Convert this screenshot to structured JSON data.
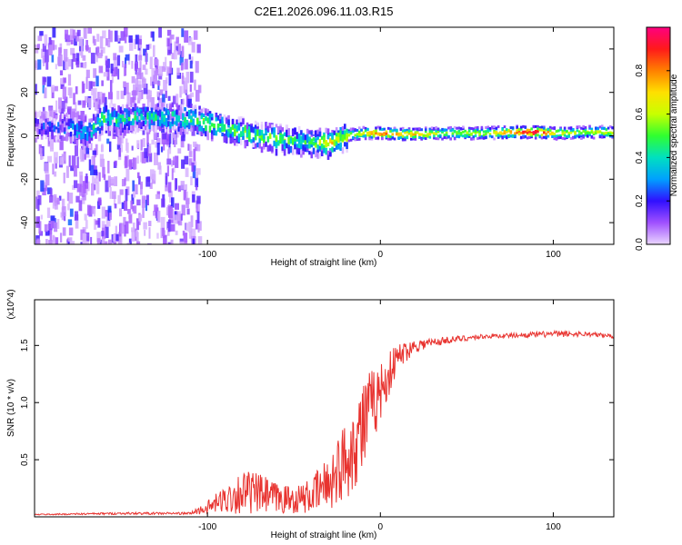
{
  "title": "C2E1.2026.096.11.03.R15",
  "chart_data": [
    {
      "type": "heatmap",
      "name": "spectrogram",
      "xlabel": "Height of straight line (km)",
      "ylabel": "Frequency (Hz)",
      "xlim": [
        -200,
        135
      ],
      "ylim": [
        -50,
        50
      ],
      "xticks": [
        -100,
        0,
        100
      ],
      "xtick_labels": [
        "-100",
        "0",
        "100"
      ],
      "yticks": [
        -40,
        -20,
        0,
        20,
        40
      ],
      "ytick_labels": [
        "-40",
        "-20",
        "0",
        "20",
        "40"
      ],
      "colorbar": {
        "label": "Normalized spectral amplitude",
        "range": [
          0,
          1
        ],
        "ticks": [
          0.0,
          0.2,
          0.4,
          0.6,
          0.8
        ],
        "tick_labels": [
          "0.0",
          "0.2",
          "0.4",
          "0.6",
          "0.8"
        ],
        "colors": [
          "#ead6ff",
          "#a050ff",
          "#3010ff",
          "#00a0ff",
          "#00e0c0",
          "#30ff30",
          "#c8ff00",
          "#ffe000",
          "#ff8000",
          "#ff1a1a",
          "#ff0080"
        ]
      },
      "ridge": [
        {
          "x": -190,
          "f": 5,
          "a": 0.15
        },
        {
          "x": -169,
          "f": 2,
          "a": 0.35
        },
        {
          "x": -160,
          "f": 9,
          "a": 0.45
        },
        {
          "x": -150,
          "f": 8,
          "a": 0.4
        },
        {
          "x": -140,
          "f": 9,
          "a": 0.4
        },
        {
          "x": -125,
          "f": 9,
          "a": 0.35
        },
        {
          "x": -110,
          "f": 8,
          "a": 0.45
        },
        {
          "x": -100,
          "f": 6,
          "a": 0.5
        },
        {
          "x": -90,
          "f": 4,
          "a": 0.5
        },
        {
          "x": -80,
          "f": 2,
          "a": 0.5
        },
        {
          "x": -70,
          "f": 0,
          "a": 0.45
        },
        {
          "x": -60,
          "f": -1,
          "a": 0.5
        },
        {
          "x": -50,
          "f": -2,
          "a": 0.45
        },
        {
          "x": -40,
          "f": -3,
          "a": 0.4
        },
        {
          "x": -30,
          "f": -3,
          "a": 0.7
        },
        {
          "x": -20,
          "f": 0,
          "a": 0.55
        },
        {
          "x": -10,
          "f": 1,
          "a": 0.65
        },
        {
          "x": 0,
          "f": 1,
          "a": 0.85
        },
        {
          "x": 10,
          "f": 0.5,
          "a": 0.75
        },
        {
          "x": 20,
          "f": 0.5,
          "a": 0.75
        },
        {
          "x": 40,
          "f": 1,
          "a": 0.55
        },
        {
          "x": 60,
          "f": 1,
          "a": 0.6
        },
        {
          "x": 80,
          "f": 1.5,
          "a": 0.85
        },
        {
          "x": 90,
          "f": 1.5,
          "a": 0.95
        },
        {
          "x": 100,
          "f": 1,
          "a": 0.7
        },
        {
          "x": 110,
          "f": 1,
          "a": 0.6
        },
        {
          "x": 120,
          "f": 1.5,
          "a": 0.55
        },
        {
          "x": 130,
          "f": 1.5,
          "a": 0.65
        }
      ]
    },
    {
      "type": "line",
      "name": "snr",
      "xlabel": "Height of straight line (km)",
      "ylabel": "SNR (10 * v/v)",
      "y_multiplier_label": "(x10^4)",
      "xlim": [
        -200,
        135
      ],
      "ylim": [
        0,
        1.9
      ],
      "xticks": [
        -100,
        0,
        100
      ],
      "xtick_labels": [
        "-100",
        "0",
        "100"
      ],
      "yticks": [
        0.5,
        1.0,
        1.5
      ],
      "ytick_labels": [
        "0.5",
        "1.0",
        "1.5"
      ],
      "line_color": "#e8332f",
      "envelope": {
        "x": [
          -200,
          -150,
          -110,
          -100,
          -90,
          -80,
          -70,
          -60,
          -50,
          -40,
          -30,
          -20,
          -15,
          -10,
          -5,
          0,
          5,
          10,
          20,
          40,
          60,
          80,
          100,
          120,
          135
        ],
        "y_mid": [
          0.02,
          0.03,
          0.03,
          0.08,
          0.15,
          0.22,
          0.2,
          0.16,
          0.15,
          0.18,
          0.3,
          0.5,
          0.65,
          0.8,
          0.95,
          1.1,
          1.25,
          1.4,
          1.5,
          1.55,
          1.58,
          1.59,
          1.6,
          1.6,
          1.58
        ],
        "y_noise": [
          0.005,
          0.01,
          0.01,
          0.06,
          0.12,
          0.2,
          0.18,
          0.14,
          0.12,
          0.15,
          0.25,
          0.35,
          0.4,
          0.45,
          0.35,
          0.25,
          0.2,
          0.12,
          0.06,
          0.03,
          0.02,
          0.02,
          0.03,
          0.02,
          0.02
        ]
      }
    }
  ]
}
